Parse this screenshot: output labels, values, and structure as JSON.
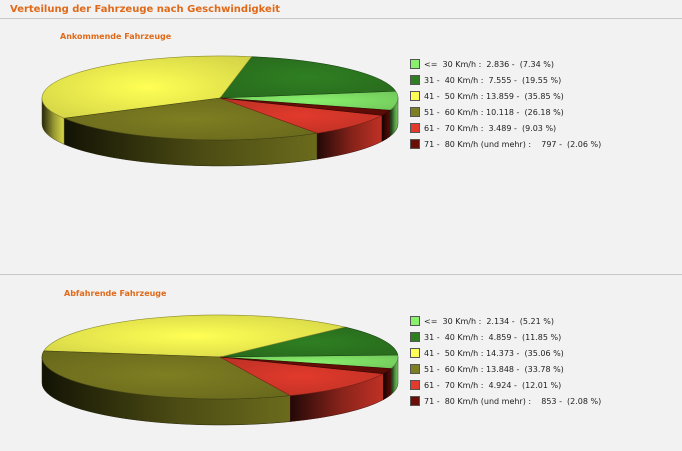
{
  "page": {
    "title": "Verteilung der Fahrzeuge nach Geschwindigkeit"
  },
  "colors": [
    "#88f06c",
    "#2f7f22",
    "#ffff55",
    "#7e7e22",
    "#e23a2c",
    "#6a0e08"
  ],
  "chart_data": [
    {
      "type": "pie",
      "title": "Ankommende Fahrzeuge",
      "categories": [
        "<= 30 Km/h",
        "31 - 40 Km/h",
        "41 - 50 Km/h",
        "51 - 60 Km/h",
        "61 - 70 Km/h",
        "71 - 80 Km/h (und mehr)"
      ],
      "values": [
        2836,
        7555,
        13859,
        10118,
        3489,
        797
      ],
      "legend_position": "right",
      "legend": [
        "<=  30 Km/h :  2.836 -  (7.34 %)",
        "31 -  40 Km/h :  7.555 -  (19.55 %)",
        "41 -  50 Km/h : 13.859 -  (35.85 %)",
        "51 -  60 Km/h : 10.118 -  (26.18 %)",
        "61 -  70 Km/h :  3.489 -  (9.03 %)",
        "71 -  80 Km/h (und mehr) :    797 -  (2.06 %)"
      ]
    },
    {
      "type": "pie",
      "title": "Abfahrende Fahrzeuge",
      "categories": [
        "<= 30 Km/h",
        "31 - 40 Km/h",
        "41 - 50 Km/h",
        "51 - 60 Km/h",
        "61 - 70 Km/h",
        "71 - 80 Km/h (und mehr)"
      ],
      "values": [
        2134,
        4859,
        14373,
        13848,
        4924,
        853
      ],
      "legend_position": "right",
      "legend": [
        "<=  30 Km/h :  2.134 -  (5.21 %)",
        "31 -  40 Km/h :  4.859 -  (11.85 %)",
        "41 -  50 Km/h : 14.373 -  (35.06 %)",
        "51 -  60 Km/h : 13.848 -  (33.78 %)",
        "61 -  70 Km/h :  4.924 -  (12.01 %)",
        "71 -  80 Km/h (und mehr) :    853 -  (2.08 %)"
      ]
    }
  ]
}
